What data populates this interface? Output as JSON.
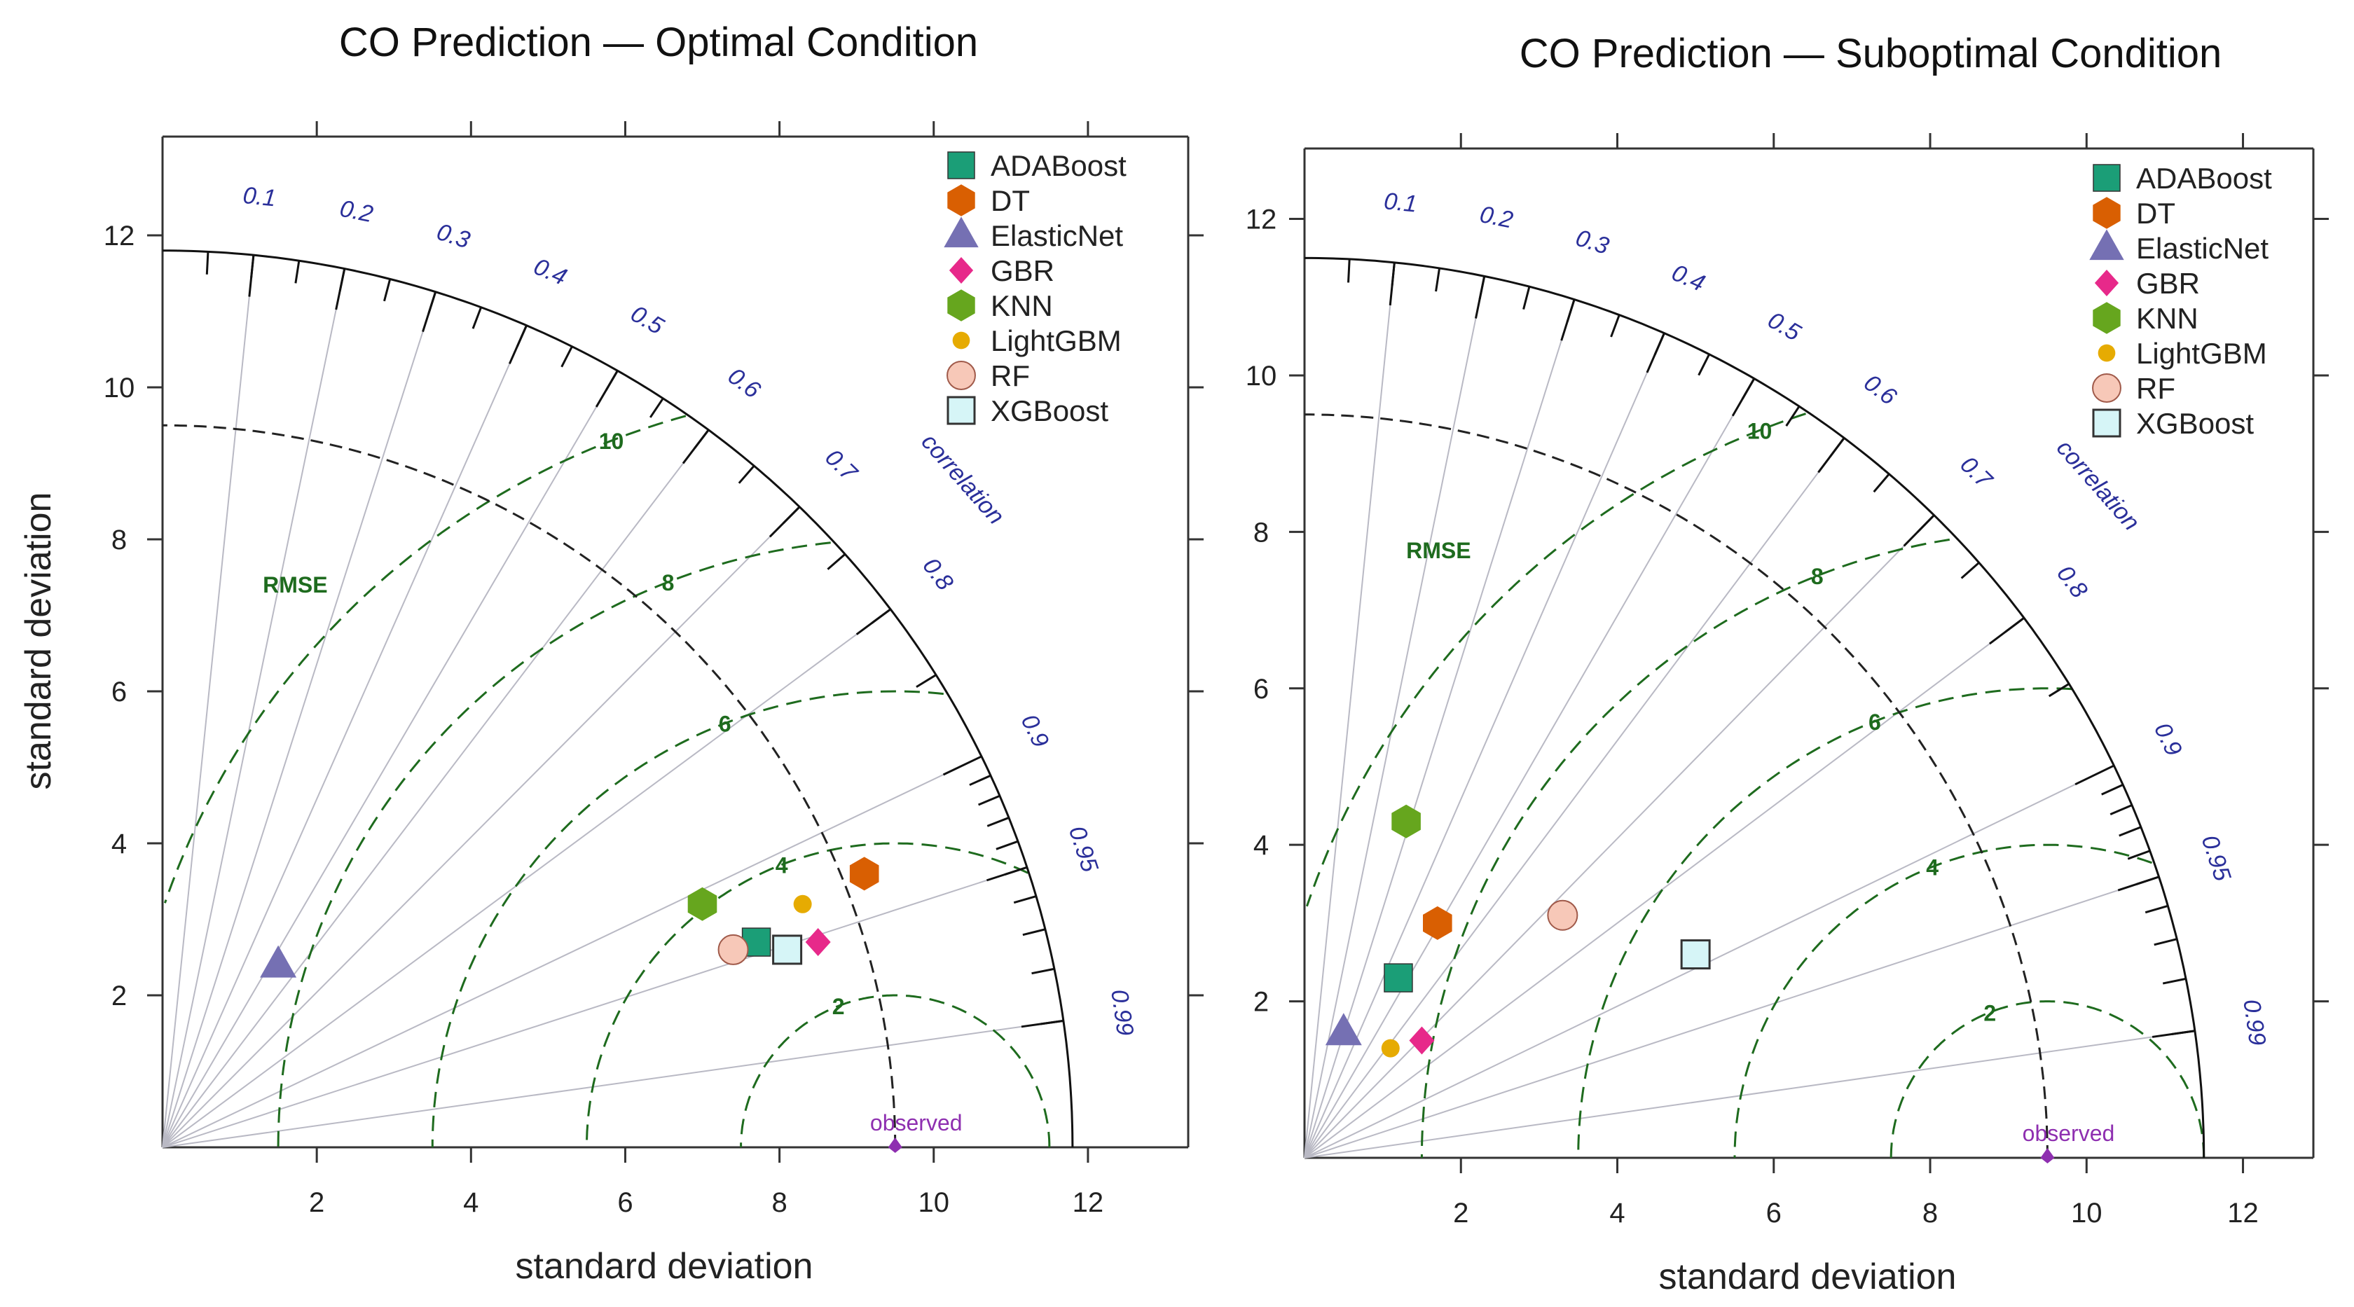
{
  "colors": {
    "ADABoost": "#1b9e77",
    "DT": "#d95f02",
    "ElasticNet": "#7570b3",
    "GBR": "#e7298a",
    "KNN": "#66a61e",
    "LightGBM": "#e6ab02",
    "RF": "#f7c8b8",
    "XGBoost": "#d6f5f7",
    "rmse_contour": "#1e6b1e",
    "correlation": "#2a2f9a",
    "observed": "#8e2fb0"
  },
  "chart_data": [
    {
      "type": "scatter",
      "subtype": "taylor-diagram",
      "title": "CO Prediction — Optimal Condition",
      "xlabel": "standard deviation",
      "ylabel": "standard deviation",
      "xlim": [
        0,
        13.3
      ],
      "ylim": [
        0,
        13.3
      ],
      "x_ticks": [
        "2",
        "4",
        "6",
        "8",
        "10",
        "12"
      ],
      "y_ticks": [
        "2",
        "4",
        "6",
        "8",
        "10",
        "12"
      ],
      "max_sd_arc": 11.8,
      "correlation_label": "correlation",
      "correlation_ticks": [
        "0.1",
        "0.2",
        "0.3",
        "0.4",
        "0.5",
        "0.6",
        "0.7",
        "0.8",
        "0.9",
        "0.95",
        "0.99"
      ],
      "rmse_label": "RMSE",
      "rmse_contours": [
        "2",
        "4",
        "6",
        "8",
        "10"
      ],
      "observed_label": "observed",
      "observed_sd": 9.5,
      "series": [
        {
          "name": "ADABoost",
          "shape": "square",
          "x": 7.7,
          "y": 2.7
        },
        {
          "name": "DT",
          "shape": "hexagon",
          "x": 9.1,
          "y": 3.6
        },
        {
          "name": "ElasticNet",
          "shape": "triangle",
          "x": 1.5,
          "y": 2.4
        },
        {
          "name": "GBR",
          "shape": "diamond",
          "x": 8.5,
          "y": 2.7
        },
        {
          "name": "KNN",
          "shape": "hexagon",
          "x": 7.0,
          "y": 3.2
        },
        {
          "name": "LightGBM",
          "shape": "dot",
          "x": 8.3,
          "y": 3.2
        },
        {
          "name": "RF",
          "shape": "circle",
          "x": 7.4,
          "y": 2.6
        },
        {
          "name": "XGBoost",
          "shape": "square-open",
          "x": 8.1,
          "y": 2.6
        }
      ]
    },
    {
      "type": "scatter",
      "subtype": "taylor-diagram",
      "title": "CO Prediction — Suboptimal Condition",
      "xlabel": "standard deviation",
      "ylabel": "",
      "xlim": [
        0,
        12.9
      ],
      "ylim": [
        0,
        12.9
      ],
      "x_ticks": [
        "2",
        "4",
        "6",
        "8",
        "10",
        "12"
      ],
      "y_ticks": [
        "2",
        "4",
        "6",
        "8",
        "10",
        "12"
      ],
      "max_sd_arc": 11.5,
      "correlation_label": "correlation",
      "correlation_ticks": [
        "0.1",
        "0.2",
        "0.3",
        "0.4",
        "0.5",
        "0.6",
        "0.7",
        "0.8",
        "0.9",
        "0.95",
        "0.99"
      ],
      "rmse_label": "RMSE",
      "rmse_contours": [
        "2",
        "4",
        "6",
        "8",
        "10"
      ],
      "observed_label": "observed",
      "observed_sd": 9.5,
      "series": [
        {
          "name": "ADABoost",
          "shape": "square",
          "x": 1.2,
          "y": 2.3
        },
        {
          "name": "DT",
          "shape": "hexagon",
          "x": 1.7,
          "y": 3.0
        },
        {
          "name": "ElasticNet",
          "shape": "triangle",
          "x": 0.5,
          "y": 1.6
        },
        {
          "name": "GBR",
          "shape": "diamond",
          "x": 1.5,
          "y": 1.5
        },
        {
          "name": "KNN",
          "shape": "hexagon",
          "x": 1.3,
          "y": 4.3
        },
        {
          "name": "LightGBM",
          "shape": "dot",
          "x": 1.1,
          "y": 1.4
        },
        {
          "name": "RF",
          "shape": "circle",
          "x": 3.3,
          "y": 3.1
        },
        {
          "name": "XGBoost",
          "shape": "square-open",
          "x": 5.0,
          "y": 2.6
        }
      ]
    }
  ]
}
